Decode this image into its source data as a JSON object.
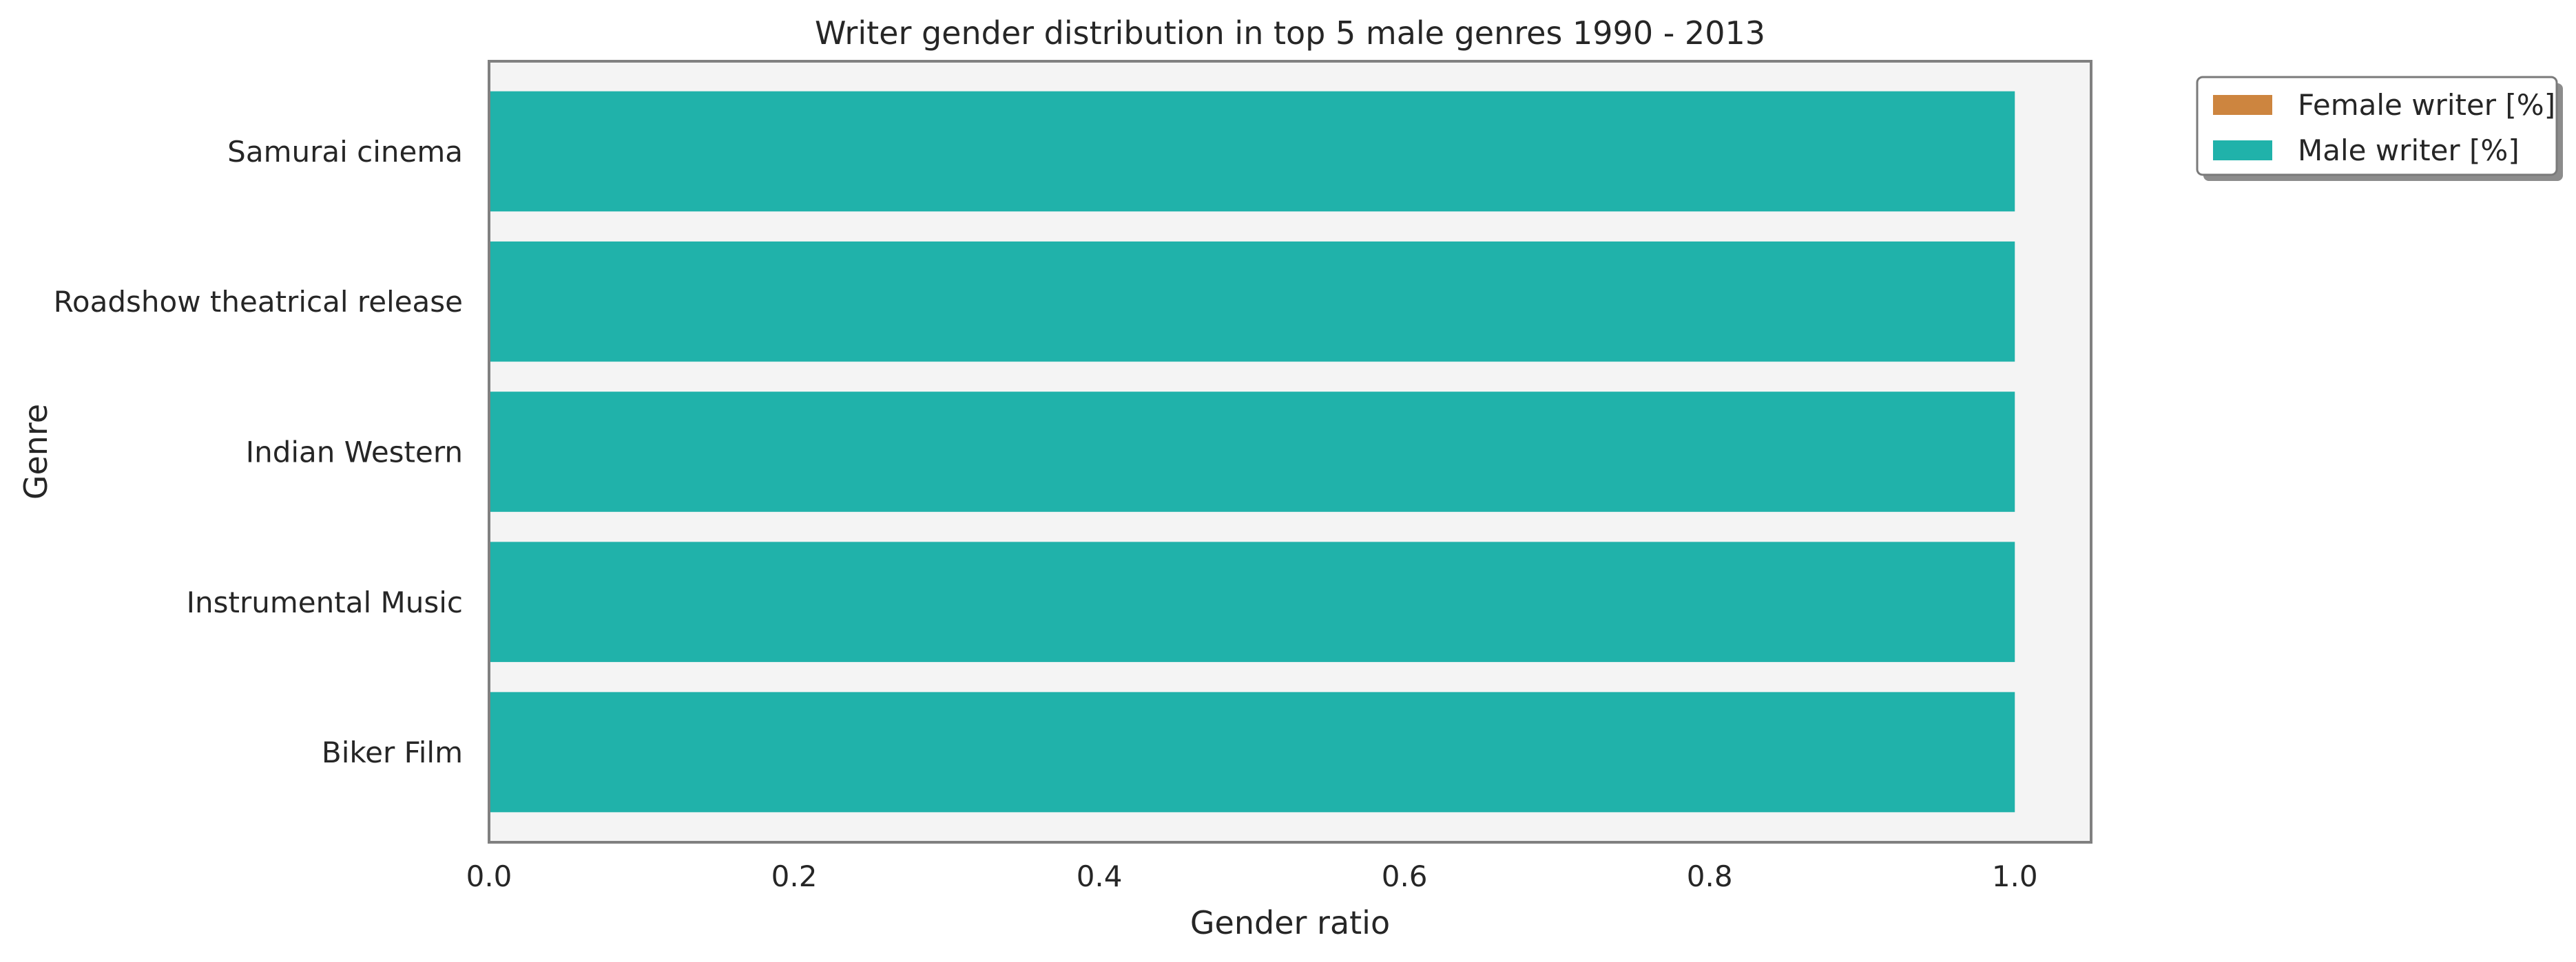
{
  "chart_data": {
    "type": "bar",
    "orientation": "horizontal",
    "stacked": true,
    "title": "Writer gender distribution in top 5 male genres 1990 - 2013",
    "xlabel": "Gender ratio",
    "ylabel": "Genre",
    "xlim": [
      0,
      1.05
    ],
    "xticks": [
      "0.0",
      "0.2",
      "0.4",
      "0.6",
      "0.8",
      "1.0"
    ],
    "categories": [
      "Samurai cinema",
      "Roadshow theatrical release",
      "Indian Western",
      "Instrumental Music",
      "Biker Film"
    ],
    "series": [
      {
        "name": "Female writer [%]",
        "color": "#cd853f",
        "values": [
          0,
          0,
          0,
          0,
          0
        ]
      },
      {
        "name": "Male writer [%]",
        "color": "#20b2aa",
        "values": [
          1.0,
          1.0,
          1.0,
          1.0,
          1.0
        ]
      }
    ],
    "grid": false,
    "plot_background": "#f4f4f4",
    "legend_position": "outside upper right"
  }
}
